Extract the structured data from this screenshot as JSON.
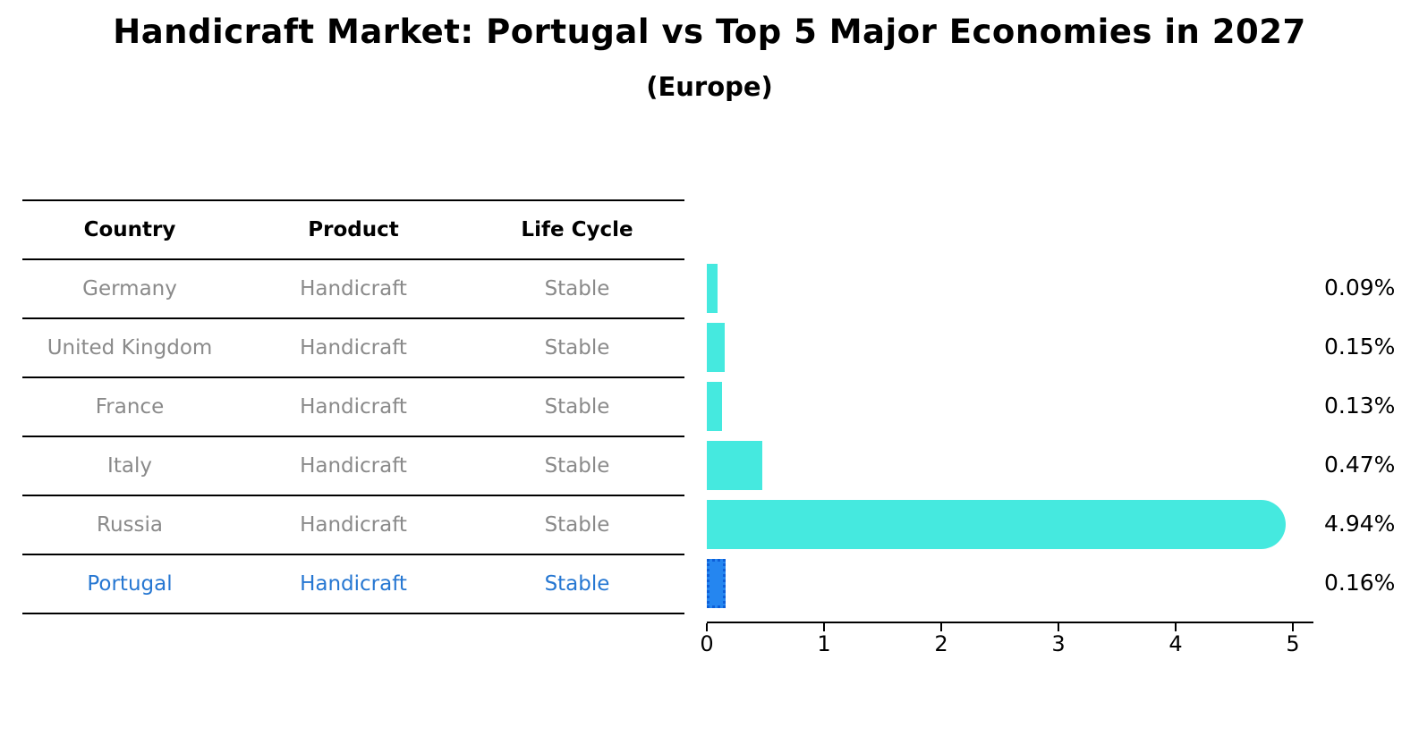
{
  "title": "Handicraft Market: Portugal vs Top 5 Major Economies in 2027",
  "subtitle": "(Europe)",
  "table": {
    "headers": [
      "Country",
      "Product",
      "Life Cycle"
    ],
    "rows": [
      {
        "country": "Germany",
        "product": "Handicraft",
        "life_cycle": "Stable",
        "highlight": false
      },
      {
        "country": "United Kingdom",
        "product": "Handicraft",
        "life_cycle": "Stable",
        "highlight": false
      },
      {
        "country": "France",
        "product": "Handicraft",
        "life_cycle": "Stable",
        "highlight": false
      },
      {
        "country": "Italy",
        "product": "Handicraft",
        "life_cycle": "Stable",
        "highlight": false
      },
      {
        "country": "Russia",
        "product": "Handicraft",
        "life_cycle": "Stable",
        "highlight": false
      },
      {
        "country": "Portugal",
        "product": "Handicraft",
        "life_cycle": "Stable",
        "highlight": true
      }
    ]
  },
  "chart_data": {
    "type": "bar",
    "orientation": "horizontal",
    "categories": [
      "Germany",
      "United Kingdom",
      "France",
      "Italy",
      "Russia",
      "Portugal"
    ],
    "values": [
      0.09,
      0.15,
      0.13,
      0.47,
      4.94,
      0.16
    ],
    "bar_labels": [
      "0.09%",
      "0.15%",
      "0.13%",
      "0.47%",
      "4.94%",
      "0.16%"
    ],
    "x_ticks": [
      "0",
      "1",
      "2",
      "3",
      "4",
      "5"
    ],
    "xlim": [
      0,
      5.2
    ],
    "grid": false,
    "legend": "none",
    "bar_color": "#45e9df",
    "highlight_index": 5,
    "highlight_fill": "#2586f0",
    "highlight_edge": "#0e5fd8",
    "highlight_text_color": "#2677d2",
    "rounded_cap_threshold": 1
  }
}
